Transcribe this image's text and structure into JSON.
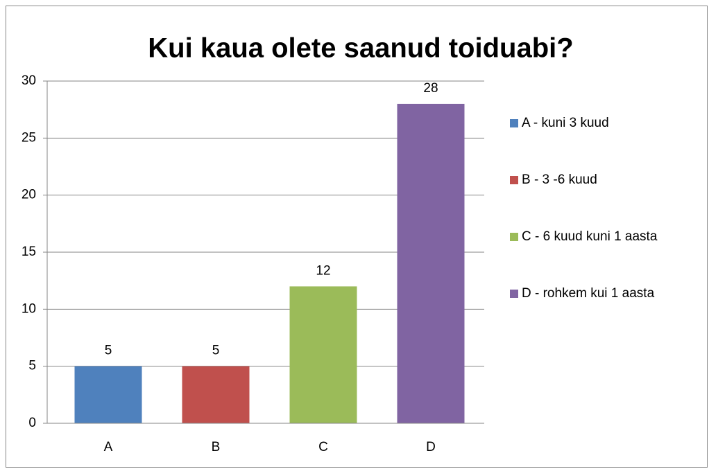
{
  "chart_data": {
    "type": "bar",
    "title": "Kui kaua olete saanud toiduabi?",
    "categories": [
      "A",
      "B",
      "C",
      "D"
    ],
    "series": [
      {
        "name": "A - kuni 3 kuud",
        "color": "#4f81bd",
        "values": [
          5,
          null,
          null,
          null
        ]
      },
      {
        "name": "B - 3 -6 kuud",
        "color": "#c0504d",
        "values": [
          null,
          5,
          null,
          null
        ]
      },
      {
        "name": "C - 6 kuud kuni 1 aasta",
        "color": "#9bbb59",
        "values": [
          null,
          null,
          12,
          null
        ]
      },
      {
        "name": "D - rohkem kui 1 aasta",
        "color": "#8064a2",
        "values": [
          null,
          null,
          null,
          28
        ]
      }
    ],
    "ylim": [
      0,
      30
    ],
    "yticks": [
      0,
      5,
      10,
      15,
      20,
      25,
      30
    ],
    "grid": true,
    "legend": "right"
  }
}
